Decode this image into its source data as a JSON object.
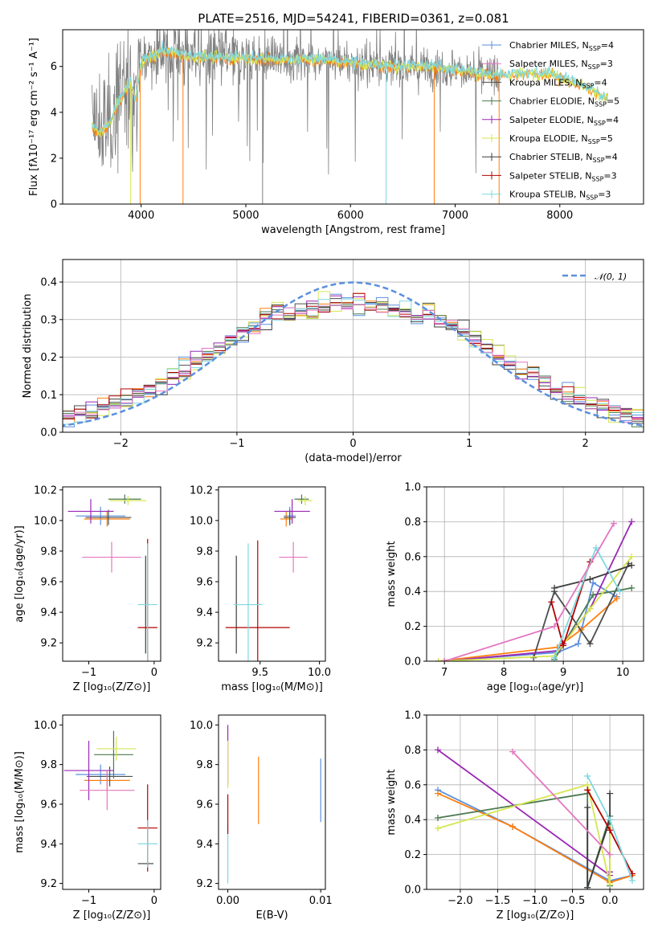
{
  "figure": {
    "title": "PLATE=2516, MJD=54241, FIBERID=0361, z=0.081"
  },
  "colors": {
    "chabrier_miles": "#5b8fde",
    "salpeter_miles": "#ff7f0e",
    "kroupa_miles": "#4d4d4d",
    "chabrier_elodie": "#4a7a50",
    "salpeter_elodie": "#9b28b5",
    "kroupa_elodie": "#d6e650",
    "chabrier_stelib": "#3c3c3c",
    "salpeter_stelib": "#b30000",
    "kroupa_stelib": "#7fd8e0",
    "pink": "#e377c2",
    "spectrum": "#808080"
  },
  "chart_data": [
    {
      "type": "line",
      "panel": "spectrum",
      "title": "PLATE=2516, MJD=54241, FIBERID=0361, z=0.081",
      "xlabel": "wavelength [Angstrom, rest frame]",
      "ylabel": "Flux [fλ10⁻¹⁷ erg cm⁻² s⁻¹ A⁻¹]",
      "xlim": [
        3250,
        8800
      ],
      "ylim": [
        0,
        7.6
      ],
      "xticks": [
        4000,
        5000,
        6000,
        7000,
        8000
      ],
      "yticks": [
        0,
        2,
        4,
        6
      ],
      "legend_position": "right",
      "legend": [
        {
          "label": "Chabrier MILES, N",
          "sub": "SSP",
          "suffix": "=4",
          "color": "chabrier_miles"
        },
        {
          "label": "Salpeter MILES, N",
          "sub": "SSP",
          "suffix": "=3",
          "color": "pink"
        },
        {
          "label": "Kroupa MILES, N",
          "sub": "SSP",
          "suffix": "=4",
          "color": "kroupa_miles"
        },
        {
          "label": "Chabrier ELODIE, N",
          "sub": "SSP",
          "suffix": "=5",
          "color": "chabrier_elodie"
        },
        {
          "label": "Salpeter ELODIE, N",
          "sub": "SSP",
          "suffix": "=4",
          "color": "salpeter_elodie"
        },
        {
          "label": "Kroupa ELODIE, N",
          "sub": "SSP",
          "suffix": "=5",
          "color": "kroupa_elodie"
        },
        {
          "label": "Chabrier STELIB, N",
          "sub": "SSP",
          "suffix": "=4",
          "color": "chabrier_stelib"
        },
        {
          "label": "Salpeter STELIB, N",
          "sub": "SSP",
          "suffix": "=3",
          "color": "salpeter_stelib"
        },
        {
          "label": "Kroupa STELIB, N",
          "sub": "SSP",
          "suffix": "=3",
          "color": "kroupa_stelib"
        }
      ],
      "continuum": [
        [
          3530,
          3.4
        ],
        [
          3600,
          3.1
        ],
        [
          3700,
          3.5
        ],
        [
          3800,
          4.6
        ],
        [
          3900,
          5.3
        ],
        [
          3950,
          4.5
        ],
        [
          4000,
          6.2
        ],
        [
          4200,
          6.7
        ],
        [
          4500,
          6.4
        ],
        [
          4900,
          6.4
        ],
        [
          5200,
          6.3
        ],
        [
          5500,
          6.3
        ],
        [
          5800,
          6.3
        ],
        [
          6100,
          6.1
        ],
        [
          6500,
          6.0
        ],
        [
          6800,
          6.0
        ],
        [
          7100,
          5.8
        ],
        [
          7350,
          5.6
        ],
        [
          7600,
          5.7
        ],
        [
          7900,
          5.7
        ],
        [
          8200,
          5.2
        ],
        [
          8460,
          4.6
        ]
      ]
    },
    {
      "type": "line",
      "panel": "residual-histogram",
      "xlabel": "(data-model)/error",
      "ylabel": "Normed distribution",
      "xlim": [
        -2.5,
        2.5
      ],
      "ylim": [
        0,
        0.46
      ],
      "xticks": [
        -2,
        -1,
        0,
        1,
        2
      ],
      "yticks": [
        0.0,
        0.1,
        0.2,
        0.3,
        0.4
      ],
      "grid": true,
      "legend_position": "top-right",
      "reference": {
        "label": "𝒩(0, 1)",
        "mean": 0,
        "sigma": 1
      },
      "bin_width": 0.1
    },
    {
      "type": "scatter",
      "panel": "age-vs-Z",
      "xlabel": "Z [log₁₀(Z/Z⊙)]",
      "ylabel": "age  [log₁₀(age/yr)]",
      "xlim": [
        -1.4,
        0.1
      ],
      "ylim": [
        9.08,
        10.22
      ],
      "xticks": [
        -1,
        0
      ],
      "yticks": [
        9.2,
        9.4,
        9.6,
        9.8,
        10.0,
        10.2
      ],
      "points": [
        {
          "x": -0.82,
          "y": 10.03,
          "xe": 0.38,
          "ye": 0.06,
          "c": "chabrier_miles"
        },
        {
          "x": -0.72,
          "y": 10.01,
          "xe": 0.35,
          "ye": 0.05,
          "c": "salpeter_miles"
        },
        {
          "x": -0.7,
          "y": 10.02,
          "xe": 0.35,
          "ye": 0.05,
          "c": "kroupa_miles"
        },
        {
          "x": -0.45,
          "y": 10.14,
          "xe": 0.25,
          "ye": 0.03,
          "c": "chabrier_elodie"
        },
        {
          "x": -0.97,
          "y": 10.06,
          "xe": 0.35,
          "ye": 0.08,
          "c": "salpeter_elodie"
        },
        {
          "x": -0.4,
          "y": 10.13,
          "xe": 0.28,
          "ye": 0.03,
          "c": "kroupa_elodie"
        },
        {
          "x": -0.13,
          "y": 9.45,
          "xe": 0.0,
          "ye": 0.32,
          "c": "chabrier_stelib"
        },
        {
          "x": -0.1,
          "y": 9.3,
          "xe": 0.15,
          "ye": 0.58,
          "c": "salpeter_stelib"
        },
        {
          "x": -0.1,
          "y": 9.45,
          "xe": 0.15,
          "ye": 0.4,
          "c": "kroupa_stelib"
        },
        {
          "x": -0.65,
          "y": 9.76,
          "xe": 0.45,
          "ye": 0.1,
          "c": "pink"
        }
      ]
    },
    {
      "type": "scatter",
      "panel": "age-vs-mass",
      "xlabel": "mass [log₁₀(M/M⊙)]",
      "ylabel": "",
      "xlim": [
        9.15,
        10.05
      ],
      "ylim": [
        9.08,
        10.22
      ],
      "xticks": [
        9.5,
        10.0
      ],
      "yticks": [
        9.2,
        9.4,
        9.6,
        9.8,
        10.0,
        10.2
      ],
      "points": [
        {
          "x": 9.75,
          "y": 10.03,
          "xe": 0.05,
          "ye": 0.06,
          "c": "chabrier_miles"
        },
        {
          "x": 9.72,
          "y": 10.01,
          "xe": 0.05,
          "ye": 0.05,
          "c": "salpeter_miles"
        },
        {
          "x": 9.75,
          "y": 10.02,
          "xe": 0.05,
          "ye": 0.05,
          "c": "kroupa_miles"
        },
        {
          "x": 9.85,
          "y": 10.14,
          "xe": 0.06,
          "ye": 0.03,
          "c": "chabrier_elodie"
        },
        {
          "x": 9.77,
          "y": 10.06,
          "xe": 0.15,
          "ye": 0.08,
          "c": "salpeter_elodie"
        },
        {
          "x": 9.88,
          "y": 10.13,
          "xe": 0.06,
          "ye": 0.03,
          "c": "kroupa_elodie"
        },
        {
          "x": 9.3,
          "y": 9.45,
          "xe": 0.0,
          "ye": 0.32,
          "c": "chabrier_stelib"
        },
        {
          "x": 9.48,
          "y": 9.3,
          "xe": 0.27,
          "ye": 0.57,
          "c": "salpeter_stelib"
        },
        {
          "x": 9.4,
          "y": 9.45,
          "xe": 0.12,
          "ye": 0.4,
          "c": "kroupa_stelib"
        },
        {
          "x": 9.78,
          "y": 9.76,
          "xe": 0.12,
          "ye": 0.1,
          "c": "pink"
        }
      ]
    },
    {
      "type": "line",
      "panel": "mass-weight-vs-age",
      "xlabel": "age  [log₁₀(age/yr)]",
      "ylabel": "mass weight",
      "xlim": [
        6.7,
        10.35
      ],
      "ylim": [
        0,
        1
      ],
      "xticks": [
        7,
        8,
        9,
        10
      ],
      "yticks": [
        0.0,
        0.2,
        0.4,
        0.6,
        0.8,
        1.0
      ],
      "grid": true,
      "series": [
        {
          "c": "chabrier_miles",
          "x": [
            6.9,
            8.9,
            9.25,
            9.5,
            9.9
          ],
          "y": [
            0.0,
            0.05,
            0.1,
            0.45,
            0.37
          ]
        },
        {
          "c": "salpeter_miles",
          "x": [
            6.9,
            8.9,
            9.3,
            9.9
          ],
          "y": [
            0.0,
            0.08,
            0.18,
            0.36
          ]
        },
        {
          "c": "kroupa_miles",
          "x": [
            8.5,
            8.85,
            9.45,
            10.1
          ],
          "y": [
            0.02,
            0.4,
            0.1,
            0.56
          ]
        },
        {
          "c": "chabrier_elodie",
          "x": [
            8.85,
            9.5,
            10.15
          ],
          "y": [
            0.01,
            0.38,
            0.42
          ]
        },
        {
          "c": "salpeter_elodie",
          "x": [
            7.0,
            8.9,
            9.0,
            9.45,
            10.15
          ],
          "y": [
            0.0,
            0.06,
            0.1,
            0.3,
            0.8
          ]
        },
        {
          "c": "kroupa_elodie",
          "x": [
            6.9,
            8.85,
            9.45,
            10.15
          ],
          "y": [
            0.0,
            0.03,
            0.3,
            0.6
          ]
        },
        {
          "c": "chabrier_stelib",
          "x": [
            8.85,
            9.45,
            10.15
          ],
          "y": [
            0.42,
            0.47,
            0.55
          ]
        },
        {
          "c": "salpeter_stelib",
          "x": [
            8.8,
            9.0,
            9.45
          ],
          "y": [
            0.34,
            0.09,
            0.57
          ]
        },
        {
          "c": "kroupa_stelib",
          "x": [
            8.85,
            9.55,
            9.95
          ],
          "y": [
            0.02,
            0.65,
            0.4
          ]
        },
        {
          "c": "pink",
          "x": [
            7.0,
            8.85,
            9.85
          ],
          "y": [
            0.0,
            0.2,
            0.79
          ]
        }
      ]
    },
    {
      "type": "scatter",
      "panel": "mass-vs-Z",
      "xlabel": "Z [log₁₀(Z/Z⊙)]",
      "ylabel": "mass [log₁₀(M/M⊙)]",
      "xlim": [
        -1.4,
        0.1
      ],
      "ylim": [
        9.17,
        10.05
      ],
      "xticks": [
        -1,
        0
      ],
      "yticks": [
        9.2,
        9.4,
        9.6,
        9.8,
        10.0
      ],
      "points": [
        {
          "x": -0.82,
          "y": 9.75,
          "xe": 0.38,
          "ye": 0.05,
          "c": "chabrier_miles"
        },
        {
          "x": -0.72,
          "y": 9.72,
          "xe": 0.35,
          "ye": 0.05,
          "c": "salpeter_miles"
        },
        {
          "x": -0.68,
          "y": 9.74,
          "xe": 0.35,
          "ye": 0.05,
          "c": "kroupa_miles"
        },
        {
          "x": -0.62,
          "y": 9.85,
          "xe": 0.3,
          "ye": 0.12,
          "c": "chabrier_elodie"
        },
        {
          "x": -1.0,
          "y": 9.77,
          "xe": 0.38,
          "ye": 0.15,
          "c": "salpeter_elodie"
        },
        {
          "x": -0.58,
          "y": 9.88,
          "xe": 0.3,
          "ye": 0.06,
          "c": "kroupa_elodie"
        },
        {
          "x": -0.13,
          "y": 9.3,
          "xe": 0.12,
          "ye": 0.0,
          "c": "chabrier_stelib"
        },
        {
          "x": -0.1,
          "y": 9.48,
          "xe": 0.15,
          "ye": 0.22,
          "c": "salpeter_stelib"
        },
        {
          "x": -0.1,
          "y": 9.4,
          "xe": 0.15,
          "ye": 0.12,
          "c": "kroupa_stelib"
        },
        {
          "x": -0.72,
          "y": 9.67,
          "xe": 0.42,
          "ye": 0.1,
          "c": "pink"
        }
      ]
    },
    {
      "type": "scatter",
      "panel": "mass-vs-ebv",
      "xlabel": "E(B-V)",
      "ylabel": "",
      "xlim": [
        -0.001,
        0.0105
      ],
      "ylim": [
        9.17,
        10.05
      ],
      "xticks": [
        0.0,
        0.01
      ],
      "xticklabels": [
        "0.00",
        "0.01"
      ],
      "yticks": [
        9.2,
        9.4,
        9.6,
        9.8,
        10.0
      ],
      "points": [
        {
          "x": 0.0,
          "y": 9.85,
          "xe": 0,
          "ye": 0.15,
          "c": "salpeter_elodie"
        },
        {
          "x": 0.0,
          "y": 9.8,
          "xe": 0,
          "ye": 0.12,
          "c": "kroupa_elodie"
        },
        {
          "x": 0.0,
          "y": 9.35,
          "xe": 0,
          "ye": 0.15,
          "c": "kroupa_stelib"
        },
        {
          "x": 0.0,
          "y": 9.55,
          "xe": 0,
          "ye": 0.1,
          "c": "salpeter_stelib"
        },
        {
          "x": 0.0033,
          "y": 9.67,
          "xe": 0,
          "ye": 0.17,
          "c": "salpeter_miles"
        },
        {
          "x": 0.01,
          "y": 9.67,
          "xe": 0,
          "ye": 0.16,
          "c": "chabrier_miles"
        }
      ]
    },
    {
      "type": "line",
      "panel": "mass-weight-vs-Z",
      "xlabel": "Z [log₁₀(Z/Z⊙)]",
      "ylabel": "mass weight",
      "xlim": [
        -2.45,
        0.45
      ],
      "ylim": [
        0,
        1
      ],
      "xticks": [
        -2.0,
        -1.5,
        -1.0,
        -0.5,
        0.0
      ],
      "yticks": [
        0.0,
        0.2,
        0.4,
        0.6,
        0.8,
        1.0
      ],
      "grid": true,
      "series": [
        {
          "c": "chabrier_miles",
          "x": [
            -2.3,
            -1.3,
            0.0,
            0.3
          ],
          "y": [
            0.57,
            0.36,
            0.05,
            0.08
          ]
        },
        {
          "c": "salpeter_miles",
          "x": [
            -2.3,
            -1.3,
            0.0,
            0.3
          ],
          "y": [
            0.55,
            0.36,
            0.04,
            0.08
          ]
        },
        {
          "c": "chabrier_elodie",
          "x": [
            -2.3,
            -0.3,
            -0.3,
            0.0,
            0.0
          ],
          "y": [
            0.41,
            0.55,
            0.01,
            0.42,
            0.02
          ]
        },
        {
          "c": "salpeter_elodie",
          "x": [
            -2.3,
            0.0,
            0.0
          ],
          "y": [
            0.8,
            0.08,
            0.1
          ]
        },
        {
          "c": "kroupa_elodie",
          "x": [
            -2.3,
            -0.3,
            0.0,
            0.0
          ],
          "y": [
            0.35,
            0.6,
            0.03,
            0.35
          ]
        },
        {
          "c": "chabrier_stelib",
          "x": [
            -0.3,
            -0.3,
            0.0,
            0.0
          ],
          "y": [
            0.47,
            0.01,
            0.4,
            0.55
          ]
        },
        {
          "c": "salpeter_stelib",
          "x": [
            -0.3,
            0.0,
            0.3
          ],
          "y": [
            0.57,
            0.34,
            0.09
          ]
        },
        {
          "c": "kroupa_stelib",
          "x": [
            -0.3,
            0.0,
            0.3
          ],
          "y": [
            0.65,
            0.4,
            0.05
          ]
        },
        {
          "c": "pink",
          "x": [
            -1.3,
            0.0
          ],
          "y": [
            0.79,
            0.2
          ]
        }
      ]
    }
  ]
}
